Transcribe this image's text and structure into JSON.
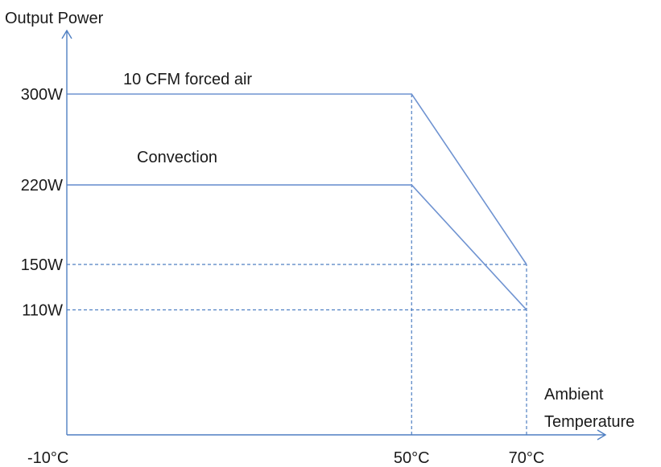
{
  "chart_data": {
    "type": "line",
    "ylabel": "Output Power",
    "xlabel_lines": [
      "Ambient",
      "Temperature"
    ],
    "x_ticks": [
      {
        "value": -10,
        "label": "-10°C"
      },
      {
        "value": 50,
        "label": "50°C"
      },
      {
        "value": 70,
        "label": "70°C"
      }
    ],
    "y_ticks": [
      {
        "value": 300,
        "label": "300W"
      },
      {
        "value": 220,
        "label": "220W"
      },
      {
        "value": 150,
        "label": "150W"
      },
      {
        "value": 110,
        "label": "110W"
      }
    ],
    "series": [
      {
        "name": "10 CFM forced air",
        "x": [
          -10,
          50,
          70
        ],
        "y": [
          300,
          300,
          150
        ]
      },
      {
        "name": "Convection",
        "x": [
          -10,
          50,
          70
        ],
        "y": [
          220,
          220,
          110
        ]
      }
    ],
    "guides": {
      "vertical_at_x": [
        50,
        70
      ],
      "horizontal_at_y": [
        150,
        110
      ]
    },
    "xlim": [
      -10,
      70
    ],
    "ylim": [
      0,
      300
    ],
    "colors": {
      "axis": "#4f7fc2",
      "line": "#6f93d1"
    }
  }
}
